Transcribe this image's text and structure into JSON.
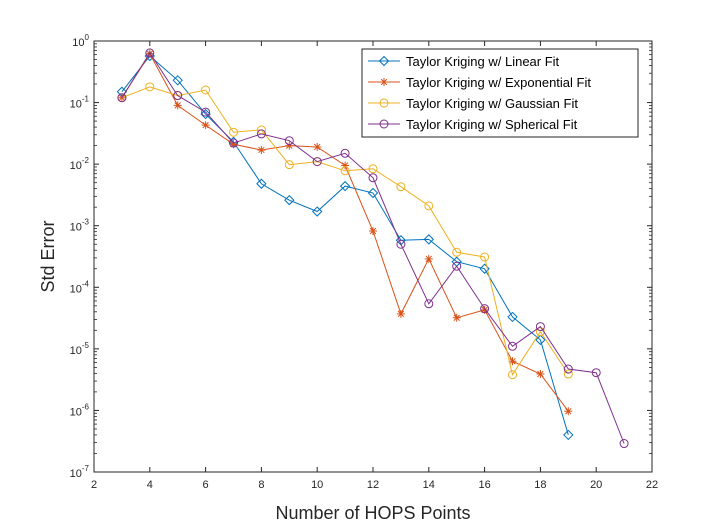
{
  "chart_data": {
    "type": "line",
    "title": "",
    "xlabel": "Number of HOPS Points",
    "ylabel": "Std Error",
    "xlim": [
      2,
      22
    ],
    "ylim": [
      1e-07,
      1
    ],
    "yscale": "log",
    "xticks": [
      "2",
      "4",
      "6",
      "8",
      "10",
      "12",
      "14",
      "16",
      "18",
      "20",
      "22"
    ],
    "yticks": [
      {
        "base": "10",
        "exp": "-7"
      },
      {
        "base": "10",
        "exp": "-6"
      },
      {
        "base": "10",
        "exp": "-5"
      },
      {
        "base": "10",
        "exp": "-4"
      },
      {
        "base": "10",
        "exp": "-3"
      },
      {
        "base": "10",
        "exp": "-2"
      },
      {
        "base": "10",
        "exp": "-1"
      },
      {
        "base": "10",
        "exp": "0"
      }
    ],
    "grid": false,
    "legend_position": "top-right",
    "series": [
      {
        "name": "Taylor Kriging w/ Linear Fit",
        "color": "#0072BD",
        "marker": "diamond",
        "x": [
          3,
          4,
          5,
          6,
          7,
          8,
          9,
          10,
          11,
          12,
          13,
          14,
          15,
          16,
          17,
          18,
          19
        ],
        "y": [
          0.15,
          0.57,
          0.23,
          0.065,
          0.023,
          0.0048,
          0.0026,
          0.0017,
          0.0044,
          0.0034,
          0.00058,
          0.0006,
          0.00026,
          0.0002,
          3.3e-05,
          1.4e-05,
          4e-07
        ]
      },
      {
        "name": "Taylor Kriging w/ Exponential Fit",
        "color": "#D95319",
        "marker": "asterisk",
        "x": [
          3,
          4,
          5,
          6,
          7,
          8,
          9,
          10,
          11,
          12,
          13,
          14,
          15,
          16,
          17,
          18,
          19
        ],
        "y": [
          0.12,
          0.62,
          0.09,
          0.043,
          0.021,
          0.017,
          0.02,
          0.019,
          0.0095,
          0.00082,
          3.7e-05,
          0.00029,
          3.2e-05,
          4.3e-05,
          6.3e-06,
          3.9e-06,
          9.7e-07
        ]
      },
      {
        "name": "Taylor Kriging w/ Gaussian Fit",
        "color": "#EDB120",
        "marker": "circle",
        "x": [
          3,
          4,
          5,
          6,
          7,
          8,
          9,
          10,
          11,
          12,
          13,
          14,
          15,
          16,
          17,
          18,
          19
        ],
        "y": [
          0.12,
          0.18,
          0.13,
          0.16,
          0.033,
          0.036,
          0.0098,
          0.011,
          0.0078,
          0.0084,
          0.0043,
          0.0021,
          0.00037,
          0.00031,
          3.8e-06,
          1.9e-05,
          3.9e-06
        ]
      },
      {
        "name": "Taylor Kriging w/ Spherical Fit",
        "color": "#7E2F8E",
        "marker": "circle",
        "x": [
          3,
          4,
          5,
          6,
          7,
          8,
          9,
          10,
          11,
          12,
          13,
          14,
          15,
          16,
          17,
          18,
          19,
          20,
          21
        ],
        "y": [
          0.12,
          0.64,
          0.13,
          0.07,
          0.022,
          0.031,
          0.024,
          0.011,
          0.015,
          0.006,
          0.0005,
          5.4e-05,
          0.00022,
          4.5e-05,
          1.1e-05,
          2.3e-05,
          4.7e-06,
          4.1e-06,
          2.9e-07
        ]
      }
    ]
  }
}
